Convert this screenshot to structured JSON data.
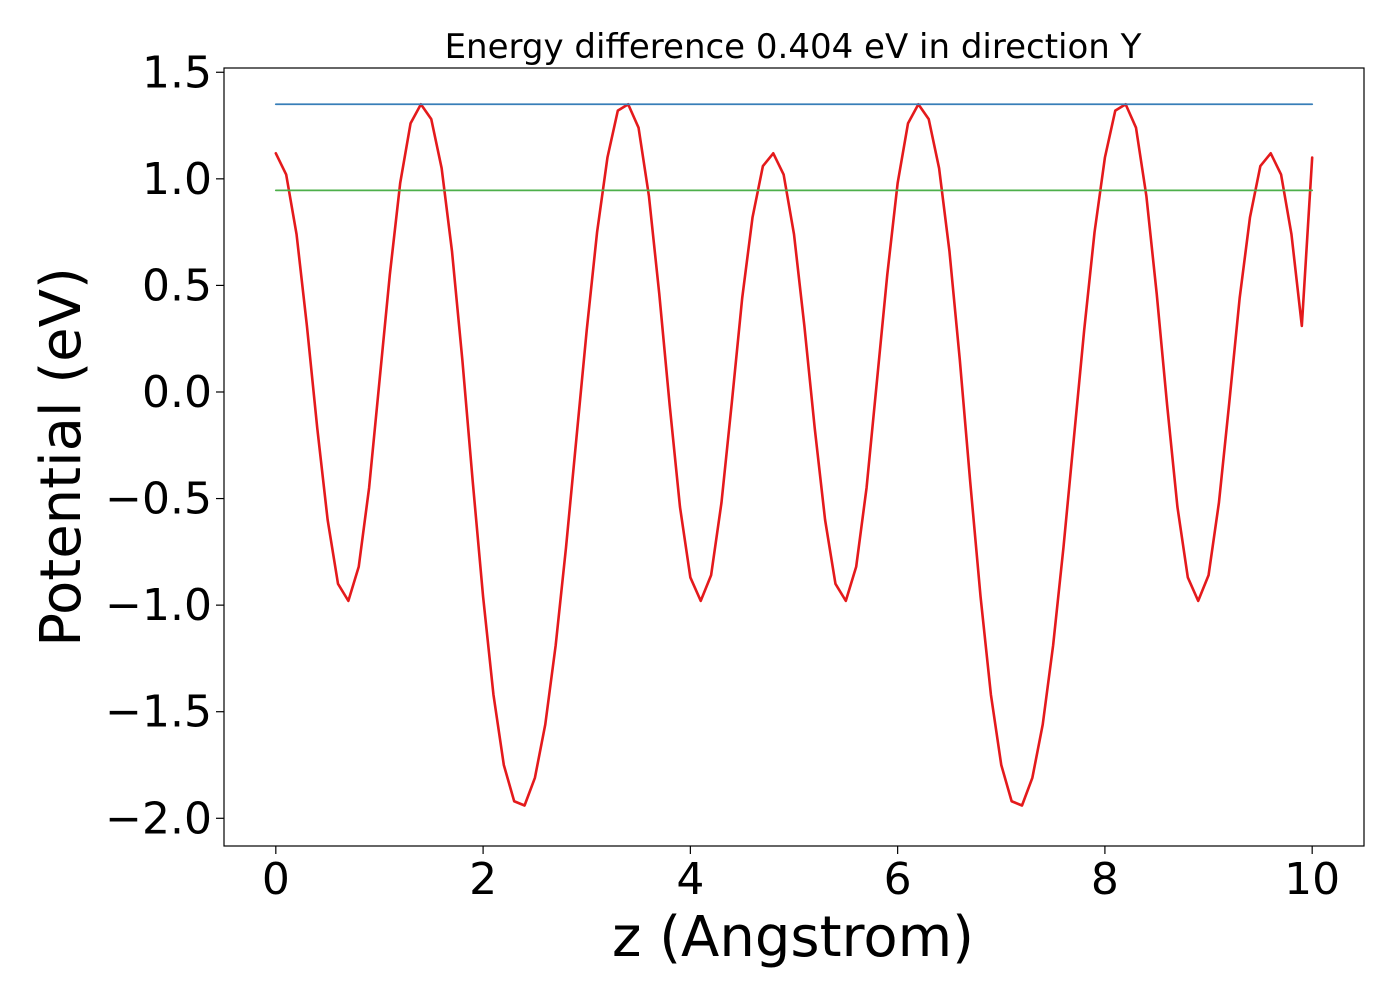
{
  "chart_data": {
    "type": "line",
    "title": "Energy difference 0.404 eV in direction Y",
    "xlabel": "z (Angstrom)",
    "ylabel": "Potential (eV)",
    "xlim": [
      -0.5,
      10.5
    ],
    "ylim": [
      -2.13,
      1.52
    ],
    "xticks": [
      0,
      2,
      4,
      6,
      8,
      10
    ],
    "xtick_labels": [
      "0",
      "2",
      "4",
      "6",
      "8",
      "10"
    ],
    "yticks": [
      1.5,
      1.0,
      0.5,
      0.0,
      -0.5,
      -1.0,
      -1.5,
      -2.0
    ],
    "ytick_labels": [
      "1.5",
      "1.0",
      "0.5",
      "0.0",
      "−0.5",
      "−1.0",
      "−1.5",
      "−2.0"
    ],
    "grid": false,
    "legend": "none",
    "series": [
      {
        "role": "potential curve",
        "color": "#e41a1c",
        "x": [
          0.0,
          0.1,
          0.2,
          0.3,
          0.4,
          0.5,
          0.6,
          0.7,
          0.8,
          0.9,
          1.0,
          1.1,
          1.2,
          1.3,
          1.4,
          1.5,
          1.6,
          1.7,
          1.8,
          1.9,
          2.0,
          2.1,
          2.2,
          2.3,
          2.4,
          2.5,
          2.6,
          2.7,
          2.8,
          2.9,
          3.0,
          3.1,
          3.2,
          3.3,
          3.4,
          3.5,
          3.6,
          3.7,
          3.8,
          3.9,
          4.0,
          4.1,
          4.2,
          4.3,
          4.4,
          4.5,
          4.6,
          4.7,
          4.8,
          4.9,
          5.0,
          5.1,
          5.2,
          5.3,
          5.4,
          5.5,
          5.6,
          5.7,
          5.8,
          5.9,
          6.0,
          6.1,
          6.2,
          6.3,
          6.4,
          6.5,
          6.6,
          6.7,
          6.8,
          6.9,
          7.0,
          7.1,
          7.2,
          7.3,
          7.4,
          7.5,
          7.6,
          7.7,
          7.8,
          7.9,
          8.0,
          8.1,
          8.2,
          8.3,
          8.4,
          8.5,
          8.6,
          8.7,
          8.8,
          8.9,
          9.0,
          9.1,
          9.2,
          9.3,
          9.4,
          9.5,
          9.6,
          9.7,
          9.8,
          9.9,
          10.0
        ],
        "y": [
          1.12,
          1.02,
          0.74,
          0.31,
          -0.17,
          -0.6,
          -0.9,
          -0.98,
          -0.82,
          -0.45,
          0.05,
          0.55,
          0.98,
          1.26,
          1.35,
          1.28,
          1.05,
          0.66,
          0.15,
          -0.42,
          -0.96,
          -1.42,
          -1.75,
          -1.92,
          -1.94,
          -1.81,
          -1.56,
          -1.19,
          -0.73,
          -0.22,
          0.29,
          0.75,
          1.1,
          1.32,
          1.35,
          1.24,
          0.92,
          0.46,
          -0.06,
          -0.54,
          -0.87,
          -0.98,
          -0.86,
          -0.52,
          -0.05,
          0.44,
          0.82,
          1.06,
          1.12,
          1.02,
          0.74,
          0.31,
          -0.17,
          -0.6,
          -0.9,
          -0.98,
          -0.82,
          -0.45,
          0.05,
          0.55,
          0.98,
          1.26,
          1.35,
          1.28,
          1.05,
          0.66,
          0.15,
          -0.42,
          -0.96,
          -1.42,
          -1.75,
          -1.92,
          -1.94,
          -1.81,
          -1.56,
          -1.19,
          -0.73,
          -0.22,
          0.29,
          0.75,
          1.1,
          1.32,
          1.35,
          1.24,
          0.92,
          0.46,
          -0.06,
          -0.54,
          -0.87,
          -0.98,
          -0.86,
          -0.52,
          -0.05,
          0.44,
          0.82,
          1.06,
          1.12,
          1.02,
          0.74,
          0.31,
          1.1
        ]
      },
      {
        "role": "maximum level",
        "color": "#377eb8",
        "x": [
          0,
          10
        ],
        "y": [
          1.35,
          1.35
        ]
      },
      {
        "role": "reference level",
        "color": "#4daf4a",
        "x": [
          0,
          10
        ],
        "y": [
          0.946,
          0.946
        ]
      }
    ]
  }
}
